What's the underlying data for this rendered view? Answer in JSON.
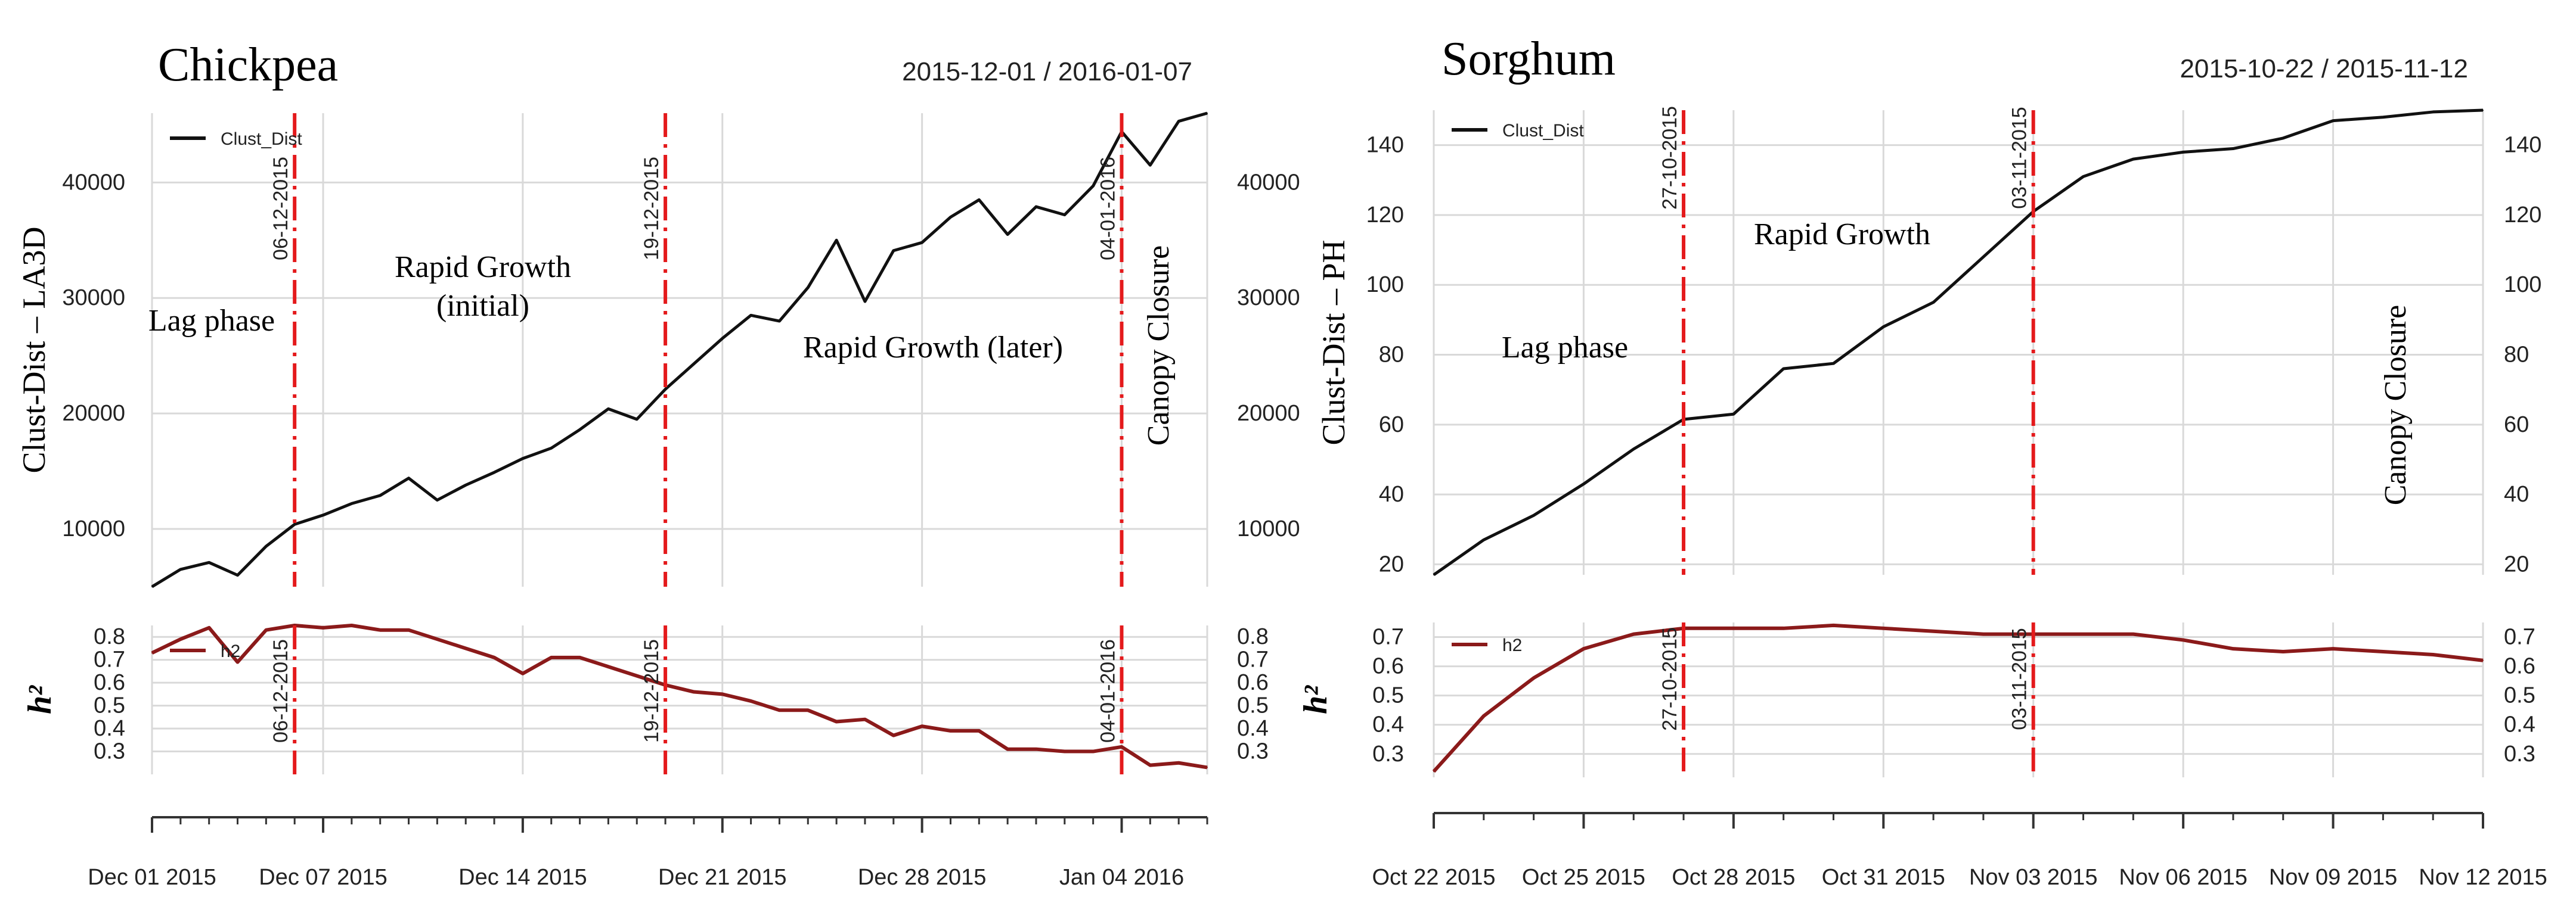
{
  "chart_data": [
    {
      "type": "line",
      "panel": "chickpea",
      "title": "Chickpea",
      "date_range": "2015-12-01 / 2016-01-07",
      "x_dates": [
        "2015-12-01",
        "2015-12-02",
        "2015-12-03",
        "2015-12-04",
        "2015-12-05",
        "2015-12-06",
        "2015-12-07",
        "2015-12-08",
        "2015-12-09",
        "2015-12-10",
        "2015-12-11",
        "2015-12-12",
        "2015-12-13",
        "2015-12-14",
        "2015-12-15",
        "2015-12-16",
        "2015-12-17",
        "2015-12-18",
        "2015-12-19",
        "2015-12-20",
        "2015-12-21",
        "2015-12-22",
        "2015-12-23",
        "2015-12-24",
        "2015-12-25",
        "2015-12-26",
        "2015-12-27",
        "2015-12-28",
        "2015-12-29",
        "2015-12-30",
        "2015-12-31",
        "2016-01-01",
        "2016-01-02",
        "2016-01-03",
        "2016-01-04",
        "2016-01-05",
        "2016-01-06",
        "2016-01-07"
      ],
      "x_ticks": [
        {
          "date": "2015-12-01",
          "label": "Dec 01 2015"
        },
        {
          "date": "2015-12-07",
          "label": "Dec 07 2015"
        },
        {
          "date": "2015-12-14",
          "label": "Dec 14 2015"
        },
        {
          "date": "2015-12-21",
          "label": "Dec 21 2015"
        },
        {
          "date": "2015-12-28",
          "label": "Dec 28 2015"
        },
        {
          "date": "2016-01-04",
          "label": "Jan 04 2016"
        }
      ],
      "top": {
        "series_name": "Clust_Dist",
        "ylabel": "Clust-Dist – LA3D",
        "ylim": [
          5000,
          46000
        ],
        "yticks": [
          10000,
          20000,
          30000,
          40000
        ],
        "values": [
          5000,
          6500,
          7100,
          6000,
          8500,
          10400,
          11200,
          12200,
          12900,
          14400,
          12500,
          13800,
          14900,
          16100,
          17000,
          18600,
          20400,
          19500,
          22100,
          24300,
          26500,
          28500,
          28000,
          30900,
          35000,
          29700,
          34100,
          34800,
          37000,
          38500,
          35500,
          37900,
          37200,
          39700,
          44400,
          41500,
          45300,
          46000
        ]
      },
      "bottom": {
        "series_name": "h2",
        "ylabel": "h²",
        "ylim": [
          0.2,
          0.85
        ],
        "yticks": [
          0.3,
          0.4,
          0.5,
          0.6,
          0.7,
          0.8
        ],
        "values": [
          0.73,
          0.79,
          0.84,
          0.69,
          0.83,
          0.85,
          0.84,
          0.85,
          0.83,
          0.83,
          0.79,
          0.75,
          0.71,
          0.64,
          0.71,
          0.71,
          0.67,
          0.63,
          0.59,
          0.56,
          0.55,
          0.52,
          0.48,
          0.48,
          0.43,
          0.44,
          0.37,
          0.41,
          0.39,
          0.39,
          0.31,
          0.31,
          0.3,
          0.3,
          0.32,
          0.24,
          0.25,
          0.23
        ]
      },
      "vlines": [
        {
          "date": "2015-12-06",
          "label": "06-12-2015"
        },
        {
          "date": "2015-12-19",
          "label": "19-12-2015"
        },
        {
          "date": "2016-01-04",
          "label": "04-01-2016"
        }
      ],
      "annotations": [
        {
          "id": "lag",
          "text": "Lag phase"
        },
        {
          "id": "rapid_initial_1",
          "text": "Rapid Growth"
        },
        {
          "id": "rapid_initial_2",
          "text": "(initial)"
        },
        {
          "id": "rapid_later",
          "text": "Rapid Growth (later)"
        },
        {
          "id": "canopy",
          "text": "Canopy Closure"
        }
      ]
    },
    {
      "type": "line",
      "panel": "sorghum",
      "title": "Sorghum",
      "date_range": "2015-10-22 / 2015-11-12",
      "x_dates": [
        "2015-10-22",
        "2015-10-23",
        "2015-10-24",
        "2015-10-25",
        "2015-10-26",
        "2015-10-27",
        "2015-10-28",
        "2015-10-29",
        "2015-10-30",
        "2015-10-31",
        "2015-11-01",
        "2015-11-02",
        "2015-11-03",
        "2015-11-04",
        "2015-11-05",
        "2015-11-06",
        "2015-11-07",
        "2015-11-08",
        "2015-11-09",
        "2015-11-10",
        "2015-11-11",
        "2015-11-12"
      ],
      "x_ticks": [
        {
          "date": "2015-10-22",
          "label": "Oct 22 2015"
        },
        {
          "date": "2015-10-25",
          "label": "Oct 25 2015"
        },
        {
          "date": "2015-10-28",
          "label": "Oct 28 2015"
        },
        {
          "date": "2015-10-31",
          "label": "Oct 31 2015"
        },
        {
          "date": "2015-11-03",
          "label": "Nov 03 2015"
        },
        {
          "date": "2015-11-06",
          "label": "Nov 06 2015"
        },
        {
          "date": "2015-11-09",
          "label": "Nov 09 2015"
        },
        {
          "date": "2015-11-12",
          "label": "Nov 12 2015"
        }
      ],
      "top": {
        "series_name": "Clust_Dist",
        "ylabel": "Clust-Dist – PH",
        "ylim": [
          17,
          150
        ],
        "yticks": [
          20,
          40,
          60,
          80,
          100,
          120,
          140
        ],
        "values": [
          17,
          27,
          34,
          43,
          53,
          61.5,
          63,
          76,
          77.5,
          88,
          95,
          108,
          121,
          131,
          136,
          138,
          139,
          142,
          147,
          148,
          149.5,
          150
        ]
      },
      "bottom": {
        "series_name": "h2",
        "ylabel": "h²",
        "ylim": [
          0.22,
          0.75
        ],
        "yticks": [
          0.3,
          0.4,
          0.5,
          0.6,
          0.7
        ],
        "values": [
          0.24,
          0.43,
          0.56,
          0.66,
          0.71,
          0.73,
          0.73,
          0.73,
          0.74,
          0.73,
          0.72,
          0.71,
          0.71,
          0.71,
          0.71,
          0.69,
          0.66,
          0.65,
          0.66,
          0.65,
          0.64,
          0.62
        ]
      },
      "vlines": [
        {
          "date": "2015-10-27",
          "label": "27-10-2015"
        },
        {
          "date": "2015-11-03",
          "label": "03-11-2015"
        }
      ],
      "annotations": [
        {
          "id": "lag",
          "text": "Lag phase"
        },
        {
          "id": "rapid",
          "text": "Rapid Growth"
        },
        {
          "id": "canopy",
          "text": "Canopy Closure"
        }
      ]
    }
  ],
  "colors": {
    "line_top": "#111111",
    "line_h2": "#8b1a1a",
    "vline": "#e41a1c",
    "grid": "#d9d9d9",
    "text": "#222222"
  }
}
